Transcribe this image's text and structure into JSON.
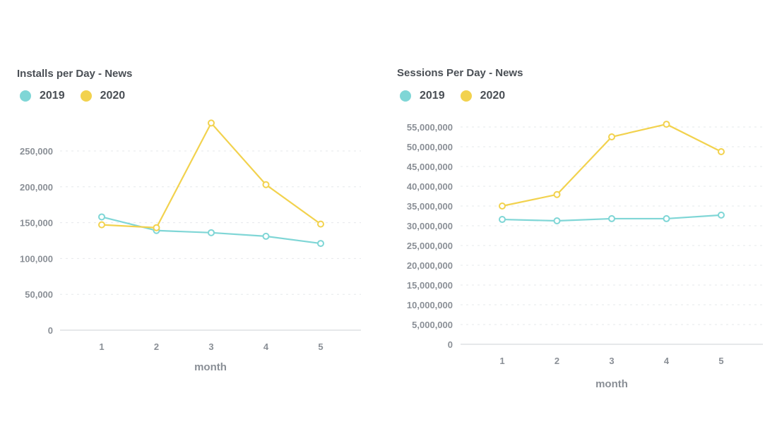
{
  "chart_data": [
    {
      "type": "line",
      "title": "Installs per Day - News",
      "xlabel": "month",
      "ylabel": "",
      "x": [
        1,
        2,
        3,
        4,
        5
      ],
      "yticks": [
        "0",
        "50,000",
        "100,000",
        "150,000",
        "200,000",
        "250,000"
      ],
      "ytick_values": [
        0,
        50000,
        100000,
        150000,
        200000,
        250000
      ],
      "ylim": [
        0,
        290000
      ],
      "grid": true,
      "legend_placement": "top-left",
      "series": [
        {
          "name": "2019",
          "color": "#7fd6d6",
          "values": [
            158000,
            139000,
            136000,
            131000,
            121000
          ]
        },
        {
          "name": "2020",
          "color": "#f2d24e",
          "values": [
            147000,
            143000,
            289000,
            203000,
            148000
          ]
        }
      ]
    },
    {
      "type": "line",
      "title": "Sessions Per Day - News",
      "xlabel": "month",
      "ylabel": "",
      "x": [
        1,
        2,
        3,
        4,
        5
      ],
      "yticks": [
        "0",
        "5,000,000",
        "10,000,000",
        "15,000,000",
        "20,000,000",
        "25,000,000",
        "30,000,000",
        "35,000,000",
        "40,000,000",
        "45,000,000",
        "50,000,000",
        "55,000,000"
      ],
      "ytick_values": [
        0,
        5000000,
        10000000,
        15000000,
        20000000,
        25000000,
        30000000,
        35000000,
        40000000,
        45000000,
        50000000,
        55000000
      ],
      "ylim": [
        0,
        55000000
      ],
      "grid": true,
      "legend_placement": "top-left",
      "series": [
        {
          "name": "2019",
          "color": "#7fd6d6",
          "values": [
            31600000,
            31250000,
            31800000,
            31800000,
            32700000
          ]
        },
        {
          "name": "2020",
          "color": "#f2d24e",
          "values": [
            35000000,
            37900000,
            52500000,
            55700000,
            48750000
          ]
        }
      ]
    }
  ]
}
